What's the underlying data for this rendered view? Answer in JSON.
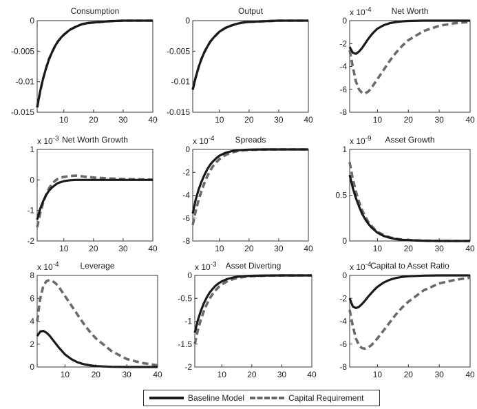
{
  "chart_data": [
    {
      "type": "line",
      "title": "Consumption",
      "exponent": "",
      "xlim": [
        1,
        40
      ],
      "ylim": [
        -0.015,
        0
      ],
      "xticks": [
        10,
        20,
        30,
        40
      ],
      "yticks": [
        0,
        -0.005,
        -0.01,
        -0.015
      ],
      "ytick_labels": [
        "0",
        "-0.005",
        "-0.01",
        "-0.015"
      ],
      "series": [
        {
          "name": "Baseline Model",
          "x": [
            1,
            2,
            3,
            4,
            5,
            6,
            7,
            8,
            9,
            10,
            12,
            14,
            16,
            18,
            20,
            25,
            30,
            35,
            40
          ],
          "y": [
            -0.0142,
            -0.0116,
            -0.0095,
            -0.0078,
            -0.0063,
            -0.0052,
            -0.0042,
            -0.0034,
            -0.0028,
            -0.0023,
            -0.0015,
            -0.001,
            -0.0006,
            -0.0004,
            -0.0003,
            -0.0001,
            0,
            0,
            0
          ]
        },
        {
          "name": "Capital Requirement",
          "x": [
            1,
            2,
            3,
            4,
            5,
            6,
            7,
            8,
            9,
            10,
            12,
            14,
            16,
            18,
            20,
            25,
            30,
            35,
            40
          ],
          "y": [
            -0.0142,
            -0.0116,
            -0.0095,
            -0.0078,
            -0.0063,
            -0.0052,
            -0.0042,
            -0.0034,
            -0.0028,
            -0.0023,
            -0.0015,
            -0.001,
            -0.0006,
            -0.0004,
            -0.0003,
            -0.0001,
            0,
            0,
            0
          ]
        }
      ]
    },
    {
      "type": "line",
      "title": "Output",
      "exponent": "",
      "xlim": [
        1,
        40
      ],
      "ylim": [
        -0.015,
        0
      ],
      "xticks": [
        10,
        20,
        30,
        40
      ],
      "yticks": [
        0,
        -0.005,
        -0.01,
        -0.015
      ],
      "ytick_labels": [
        "0",
        "-0.005",
        "-0.01",
        "-0.015"
      ],
      "series": [
        {
          "name": "Baseline Model",
          "x": [
            1,
            2,
            3,
            4,
            5,
            6,
            7,
            8,
            9,
            10,
            12,
            14,
            16,
            18,
            20,
            25,
            30,
            35,
            40
          ],
          "y": [
            -0.0113,
            -0.0093,
            -0.0076,
            -0.0062,
            -0.0051,
            -0.0042,
            -0.0034,
            -0.0028,
            -0.0023,
            -0.0018,
            -0.0012,
            -0.0008,
            -0.0005,
            -0.0003,
            -0.0002,
            -0.0001,
            0,
            0,
            0
          ]
        },
        {
          "name": "Capital Requirement",
          "x": [
            1,
            2,
            3,
            4,
            5,
            6,
            7,
            8,
            9,
            10,
            12,
            14,
            16,
            18,
            20,
            25,
            30,
            35,
            40
          ],
          "y": [
            -0.0113,
            -0.0093,
            -0.0076,
            -0.0062,
            -0.0051,
            -0.0042,
            -0.0034,
            -0.0028,
            -0.0023,
            -0.0018,
            -0.0012,
            -0.0008,
            -0.0005,
            -0.0003,
            -0.0002,
            -0.0001,
            0,
            0,
            0
          ]
        }
      ]
    },
    {
      "type": "line",
      "title": "Net Worth",
      "exponent": "x 10-4",
      "xlim": [
        1,
        40
      ],
      "ylim": [
        -8,
        0
      ],
      "xticks": [
        10,
        20,
        30,
        40
      ],
      "yticks": [
        0,
        -2,
        -4,
        -6,
        -8
      ],
      "ytick_labels": [
        "0",
        "-2",
        "-4",
        "-6",
        "-8"
      ],
      "series": [
        {
          "name": "Baseline Model",
          "x": [
            1,
            2,
            3,
            4,
            5,
            6,
            7,
            8,
            9,
            10,
            12,
            14,
            16,
            18,
            20,
            25,
            30,
            35,
            40
          ],
          "y": [
            -2.3,
            -2.8,
            -2.9,
            -2.7,
            -2.4,
            -2.0,
            -1.6,
            -1.25,
            -0.95,
            -0.7,
            -0.4,
            -0.22,
            -0.12,
            -0.06,
            -0.03,
            0,
            0,
            0,
            0
          ]
        },
        {
          "name": "Capital Requirement",
          "x": [
            1,
            2,
            3,
            4,
            5,
            6,
            7,
            8,
            9,
            10,
            12,
            14,
            16,
            18,
            20,
            25,
            30,
            35,
            40
          ],
          "y": [
            -2.6,
            -4.0,
            -5.3,
            -6.0,
            -6.3,
            -6.35,
            -6.2,
            -5.9,
            -5.5,
            -5.1,
            -4.3,
            -3.5,
            -2.8,
            -2.2,
            -1.7,
            -0.9,
            -0.45,
            -0.22,
            -0.1
          ]
        }
      ]
    },
    {
      "type": "line",
      "title": "Net Worth Growth",
      "exponent": "x 10-3",
      "xlim": [
        1,
        40
      ],
      "ylim": [
        -2,
        1
      ],
      "xticks": [
        10,
        20,
        30,
        40
      ],
      "yticks": [
        1,
        0,
        -1,
        -2
      ],
      "ytick_labels": [
        "1",
        "0",
        "-1",
        "-2"
      ],
      "series": [
        {
          "name": "Baseline Model",
          "x": [
            1,
            2,
            3,
            4,
            5,
            6,
            7,
            8,
            10,
            12,
            14,
            16,
            18,
            20,
            25,
            30,
            35,
            40
          ],
          "y": [
            -1.3,
            -0.95,
            -0.7,
            -0.5,
            -0.35,
            -0.25,
            -0.17,
            -0.1,
            -0.04,
            -0.01,
            0,
            0,
            0,
            0,
            0,
            0,
            0,
            0
          ]
        },
        {
          "name": "Capital Requirement",
          "x": [
            1,
            2,
            3,
            4,
            5,
            6,
            7,
            8,
            10,
            12,
            14,
            16,
            18,
            20,
            25,
            30,
            35,
            40
          ],
          "y": [
            -1.55,
            -1.1,
            -0.75,
            -0.48,
            -0.28,
            -0.13,
            -0.03,
            0.04,
            0.1,
            0.13,
            0.14,
            0.12,
            0.1,
            0.08,
            0.05,
            0.03,
            0.02,
            0.01
          ]
        }
      ]
    },
    {
      "type": "line",
      "title": "Spreads",
      "exponent": "x 10-4",
      "xlim": [
        1,
        40
      ],
      "ylim": [
        -8,
        0
      ],
      "xticks": [
        10,
        20,
        30,
        40
      ],
      "yticks": [
        0,
        -2,
        -4,
        -6,
        -8
      ],
      "ytick_labels": [
        "0",
        "-2",
        "-4",
        "-6",
        "-8"
      ],
      "series": [
        {
          "name": "Baseline Model",
          "x": [
            1,
            2,
            3,
            4,
            5,
            6,
            7,
            8,
            9,
            10,
            12,
            14,
            16,
            18,
            20,
            25,
            30,
            35,
            40
          ],
          "y": [
            -5.6,
            -4.4,
            -3.5,
            -2.8,
            -2.2,
            -1.7,
            -1.3,
            -1.0,
            -0.75,
            -0.55,
            -0.3,
            -0.16,
            -0.08,
            -0.04,
            -0.02,
            0,
            0,
            0,
            0
          ]
        },
        {
          "name": "Capital Requirement",
          "x": [
            1,
            2,
            3,
            4,
            5,
            6,
            7,
            8,
            9,
            10,
            12,
            14,
            16,
            18,
            20,
            25,
            30,
            35,
            40
          ],
          "y": [
            -6.6,
            -5.4,
            -4.4,
            -3.6,
            -2.9,
            -2.3,
            -1.8,
            -1.4,
            -1.1,
            -0.85,
            -0.5,
            -0.28,
            -0.15,
            -0.08,
            -0.04,
            -0.01,
            0,
            0,
            0
          ]
        }
      ]
    },
    {
      "type": "line",
      "title": "Asset Growth",
      "exponent": "x 10-9",
      "xlim": [
        1,
        40
      ],
      "ylim": [
        0,
        1
      ],
      "xticks": [
        10,
        20,
        30,
        40
      ],
      "yticks": [
        1,
        0.5,
        0
      ],
      "ytick_labels": [
        "1",
        "0.5",
        "0"
      ],
      "series": [
        {
          "name": "Baseline Model",
          "x": [
            1,
            2,
            3,
            4,
            5,
            6,
            7,
            8,
            9,
            10,
            12,
            14,
            16,
            18,
            20,
            25,
            30,
            35,
            40
          ],
          "y": [
            0.72,
            0.58,
            0.47,
            0.38,
            0.3,
            0.24,
            0.19,
            0.15,
            0.12,
            0.09,
            0.055,
            0.035,
            0.02,
            0.012,
            0.008,
            0.003,
            0.001,
            0,
            0
          ]
        },
        {
          "name": "Capital Requirement",
          "x": [
            1,
            2,
            3,
            4,
            5,
            6,
            7,
            8,
            9,
            10,
            12,
            14,
            16,
            18,
            20,
            25,
            30,
            35,
            40
          ],
          "y": [
            0.86,
            0.68,
            0.54,
            0.43,
            0.34,
            0.27,
            0.21,
            0.17,
            0.13,
            0.1,
            0.065,
            0.04,
            0.025,
            0.015,
            0.01,
            0.004,
            0.001,
            0,
            0
          ]
        }
      ]
    },
    {
      "type": "line",
      "title": "Leverage",
      "exponent": "x 10-4",
      "xlim": [
        1,
        40
      ],
      "ylim": [
        0,
        8
      ],
      "xticks": [
        10,
        20,
        30,
        40
      ],
      "yticks": [
        8,
        6,
        4,
        2,
        0
      ],
      "ytick_labels": [
        "8",
        "6",
        "4",
        "2",
        "0"
      ],
      "series": [
        {
          "name": "Baseline Model",
          "x": [
            1,
            2,
            3,
            4,
            5,
            6,
            7,
            8,
            9,
            10,
            12,
            14,
            16,
            18,
            20,
            25,
            30,
            35,
            40
          ],
          "y": [
            2.7,
            3.1,
            3.15,
            3.0,
            2.75,
            2.4,
            2.05,
            1.7,
            1.4,
            1.1,
            0.7,
            0.42,
            0.25,
            0.15,
            0.08,
            0.02,
            0,
            0,
            0
          ]
        },
        {
          "name": "Capital Requirement",
          "x": [
            1,
            2,
            3,
            4,
            5,
            6,
            7,
            8,
            9,
            10,
            12,
            14,
            16,
            18,
            20,
            25,
            30,
            35,
            40
          ],
          "y": [
            4.0,
            6.0,
            7.1,
            7.5,
            7.6,
            7.5,
            7.3,
            7.0,
            6.6,
            6.2,
            5.4,
            4.6,
            3.8,
            3.1,
            2.5,
            1.4,
            0.7,
            0.35,
            0.15
          ]
        }
      ]
    },
    {
      "type": "line",
      "title": "Asset Diverting",
      "exponent": "x 10-3",
      "xlim": [
        1,
        40
      ],
      "ylim": [
        -2,
        0
      ],
      "xticks": [
        10,
        20,
        30,
        40
      ],
      "yticks": [
        0,
        -0.5,
        -1,
        -1.5,
        -2
      ],
      "ytick_labels": [
        "0",
        "-0.5",
        "-1",
        "-1.5",
        "-2"
      ],
      "series": [
        {
          "name": "Baseline Model",
          "x": [
            1,
            2,
            3,
            4,
            5,
            6,
            7,
            8,
            9,
            10,
            12,
            14,
            16,
            18,
            20,
            25,
            30,
            35,
            40
          ],
          "y": [
            -1.25,
            -0.98,
            -0.78,
            -0.61,
            -0.48,
            -0.37,
            -0.29,
            -0.22,
            -0.17,
            -0.13,
            -0.075,
            -0.042,
            -0.024,
            -0.013,
            -0.007,
            -0.002,
            0,
            0,
            0
          ]
        },
        {
          "name": "Capital Requirement",
          "x": [
            1,
            2,
            3,
            4,
            5,
            6,
            7,
            8,
            9,
            10,
            12,
            14,
            16,
            18,
            20,
            25,
            30,
            35,
            40
          ],
          "y": [
            -1.5,
            -1.2,
            -0.97,
            -0.78,
            -0.63,
            -0.5,
            -0.4,
            -0.32,
            -0.25,
            -0.2,
            -0.12,
            -0.075,
            -0.045,
            -0.027,
            -0.016,
            -0.005,
            -0.001,
            0,
            0
          ]
        }
      ]
    },
    {
      "type": "line",
      "title": "Capital to Asset Ratio",
      "exponent": "x 10-4",
      "xlim": [
        1,
        40
      ],
      "ylim": [
        -8,
        0
      ],
      "xticks": [
        10,
        20,
        30,
        40
      ],
      "yticks": [
        0,
        -2,
        -4,
        -6,
        -8
      ],
      "ytick_labels": [
        "0",
        "-2",
        "-4",
        "-6",
        "-8"
      ],
      "series": [
        {
          "name": "Baseline Model",
          "x": [
            1,
            2,
            3,
            4,
            5,
            6,
            7,
            8,
            9,
            10,
            12,
            14,
            16,
            18,
            20,
            25,
            30,
            35,
            40
          ],
          "y": [
            -2.0,
            -2.7,
            -2.85,
            -2.75,
            -2.5,
            -2.2,
            -1.85,
            -1.55,
            -1.25,
            -1.0,
            -0.62,
            -0.38,
            -0.22,
            -0.13,
            -0.07,
            -0.02,
            0,
            0,
            0
          ]
        },
        {
          "name": "Capital Requirement",
          "x": [
            1,
            2,
            3,
            4,
            5,
            6,
            7,
            8,
            9,
            10,
            12,
            14,
            16,
            18,
            20,
            25,
            30,
            35,
            40
          ],
          "y": [
            -3.0,
            -4.4,
            -5.5,
            -6.1,
            -6.35,
            -6.4,
            -6.3,
            -6.1,
            -5.8,
            -5.5,
            -4.8,
            -4.1,
            -3.4,
            -2.8,
            -2.3,
            -1.3,
            -0.7,
            -0.4,
            -0.2
          ]
        }
      ]
    }
  ],
  "legend": {
    "items": [
      {
        "label": "Baseline Model",
        "color": "#1a1a1a",
        "style": "solid"
      },
      {
        "label": "Capital Requirement",
        "color": "#666666",
        "style": "dashed"
      }
    ]
  }
}
